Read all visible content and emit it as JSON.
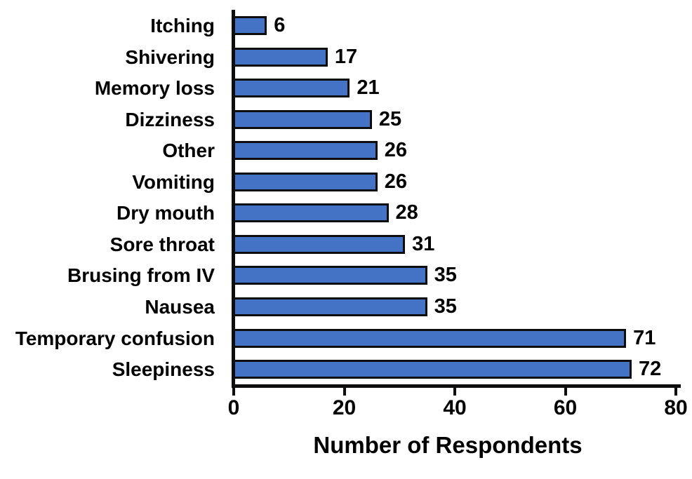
{
  "figure": {
    "background_color": "#ffffff",
    "text_color": "#000000"
  },
  "chart_data": {
    "type": "bar",
    "orientation": "horizontal",
    "categories": [
      "Itching",
      "Shivering",
      "Memory loss",
      "Dizziness",
      "Other",
      "Vomiting",
      "Dry mouth",
      "Sore throat",
      "Brusing from IV",
      "Nausea",
      "Temporary confusion",
      "Sleepiness"
    ],
    "values": [
      6,
      17,
      21,
      25,
      26,
      26,
      28,
      31,
      35,
      35,
      71,
      72
    ],
    "data_labels": [
      6,
      17,
      21,
      25,
      26,
      26,
      28,
      31,
      35,
      35,
      71,
      72
    ],
    "title": "",
    "xlabel": "Number of Respondents",
    "ylabel": "",
    "xlim": [
      0,
      80
    ],
    "xticks": [
      0,
      20,
      40,
      60,
      80
    ],
    "grid": false,
    "legend": null,
    "bar_fill_color": "#4472C4",
    "bar_border_color": "#0d0d0d",
    "axis_color": "#0d0d0d"
  }
}
